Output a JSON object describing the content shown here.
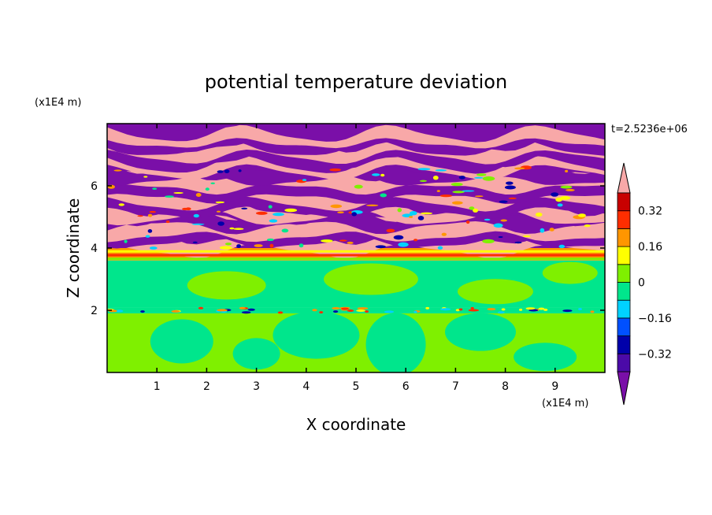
{
  "chart_data": {
    "type": "heatmap",
    "title": "potential temperature deviation",
    "xlabel": "X coordinate",
    "ylabel": "Z coordinate",
    "x_unit": "(x1E4 m)",
    "y_unit": "(x1E4 m)",
    "time_label": "t=2.5236e+06",
    "xlim": [
      0,
      10
    ],
    "ylim": [
      0,
      8
    ],
    "x_ticks": [
      "1",
      "2",
      "3",
      "4",
      "5",
      "6",
      "7",
      "8",
      "9"
    ],
    "y_ticks": [
      "2",
      "4",
      "6"
    ],
    "colorbar": {
      "labels": [
        "0.32",
        "0.16",
        "0",
        "-0.16",
        "-0.32"
      ],
      "label_display": [
        "0.32",
        "0.16",
        "0",
        "−0.16",
        "−0.32"
      ],
      "level_boundaries": [
        -0.4,
        -0.32,
        -0.24,
        -0.16,
        -0.08,
        0,
        0.08,
        0.16,
        0.24,
        0.32,
        0.4
      ],
      "colors": [
        "#7a0fa8",
        "#4b0aa8",
        "#0000aa",
        "#0050ff",
        "#00d2ff",
        "#00e68c",
        "#7ff000",
        "#ffff00",
        "#ff9600",
        "#ff2e00",
        "#c80000",
        "#f8a8a8"
      ],
      "extend": "both"
    },
    "regions": [
      {
        "z_range": [
          0,
          1.9
        ],
        "dominant_level": "0 to 0.08",
        "description_color": "#7ff000",
        "secondary_color": "#00e68c"
      },
      {
        "z_range": [
          1.9,
          2.1
        ],
        "dominant_level": "mixed -0.32 to 0.32",
        "description_color": "#00e68c"
      },
      {
        "z_range": [
          2.1,
          3.6
        ],
        "dominant_level": "-0.08 to 0",
        "description_color": "#00e68c",
        "secondary_color": "#7ff000"
      },
      {
        "z_range": [
          3.6,
          4.0
        ],
        "dominant_level": "0.08 to 0.32",
        "description_color": "#ff9600"
      },
      {
        "z_range": [
          4.0,
          8.0
        ],
        "dominant_level": "alternating < -0.4 and > 0.4",
        "description_color": "#7a0fa8",
        "secondary_color": "#f8a8a8"
      }
    ]
  }
}
